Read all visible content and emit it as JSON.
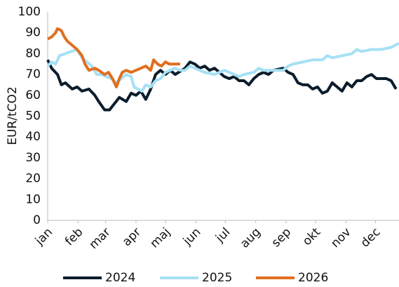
{
  "chart_data": {
    "type": "line",
    "y_label": "EUR/tCO2",
    "xlim": [
      0,
      358
    ],
    "ylim": [
      0,
      100
    ],
    "xticks": [
      {
        "value": 0,
        "label": "jan"
      },
      {
        "value": 31,
        "label": "feb"
      },
      {
        "value": 59,
        "label": "mar"
      },
      {
        "value": 90,
        "label": "apr"
      },
      {
        "value": 120,
        "label": "maj"
      },
      {
        "value": 151,
        "label": "jun"
      },
      {
        "value": 181,
        "label": "jul"
      },
      {
        "value": 212,
        "label": "aug"
      },
      {
        "value": 243,
        "label": "sep"
      },
      {
        "value": 273,
        "label": "okt"
      },
      {
        "value": 304,
        "label": "nov"
      },
      {
        "value": 334,
        "label": "dec"
      }
    ],
    "yticks": [
      0,
      10,
      20,
      30,
      40,
      50,
      60,
      70,
      80,
      90,
      100
    ],
    "grid": false,
    "series": [
      {
        "name": "2024",
        "color": "#0b1c2c",
        "x": [
          0,
          4,
          10,
          14,
          18,
          25,
          30,
          35,
          42,
          48,
          52,
          58,
          63,
          68,
          73,
          80,
          85,
          90,
          95,
          100,
          105,
          110,
          115,
          120,
          125,
          130,
          140,
          145,
          150,
          155,
          160,
          165,
          170,
          175,
          180,
          185,
          190,
          195,
          200,
          205,
          210,
          215,
          220,
          225,
          230,
          240,
          245,
          250,
          255,
          260,
          265,
          270,
          275,
          280,
          285,
          290,
          295,
          300,
          305,
          310,
          315,
          320,
          325,
          330,
          335,
          340,
          345,
          350,
          355
        ],
        "values": [
          77,
          73,
          70,
          65,
          66,
          63,
          64,
          62,
          63,
          60,
          57,
          53,
          53,
          56,
          59,
          57,
          61,
          60,
          62,
          58,
          63,
          70,
          72,
          70,
          72,
          70,
          73,
          76,
          75,
          73,
          74,
          72,
          73,
          71,
          69,
          68,
          69,
          67,
          67,
          65,
          68,
          70,
          71,
          70,
          72,
          73,
          71,
          70,
          66,
          65,
          65,
          63,
          64,
          61,
          62,
          66,
          64,
          62,
          66,
          64,
          67,
          67,
          69,
          70,
          68,
          68,
          68,
          67,
          63
        ]
      },
      {
        "name": "2025",
        "color": "#a6e0f5",
        "x": [
          0,
          4,
          8,
          12,
          18,
          24,
          30,
          35,
          40,
          45,
          50,
          55,
          60,
          65,
          70,
          75,
          80,
          85,
          88,
          92,
          96,
          100,
          105,
          110,
          115,
          120,
          125,
          130,
          135,
          140,
          145,
          150,
          160,
          170,
          180,
          190,
          195,
          200,
          210,
          215,
          220,
          230,
          240,
          245,
          250,
          260,
          270,
          280,
          285,
          290,
          300,
          310,
          315,
          320,
          330,
          340,
          350,
          358
        ],
        "values": [
          74,
          76,
          75,
          79,
          80,
          81,
          82,
          78,
          76,
          74,
          70,
          70,
          69,
          68,
          66,
          68,
          70,
          69,
          64,
          63,
          62,
          65,
          64,
          67,
          68,
          71,
          72,
          73,
          72,
          72,
          74,
          73,
          71,
          70,
          72,
          70,
          69,
          70,
          71,
          73,
          72,
          72,
          72,
          74,
          75,
          76,
          77,
          77,
          79,
          78,
          79,
          80,
          82,
          81,
          82,
          82,
          83,
          85
        ]
      },
      {
        "name": "2026",
        "color": "#e06f1f",
        "x": [
          0,
          4,
          8,
          10,
          14,
          17,
          20,
          25,
          30,
          35,
          38,
          42,
          48,
          52,
          58,
          62,
          66,
          70,
          73,
          76,
          80,
          85,
          90,
          95,
          100,
          105,
          108,
          112,
          116,
          120,
          124,
          128,
          132,
          135
        ],
        "values": [
          87,
          88,
          90,
          92,
          91,
          88,
          86,
          84,
          82,
          79,
          75,
          72,
          73,
          72,
          70,
          71,
          68,
          64,
          68,
          71,
          72,
          71,
          72,
          73,
          74,
          72,
          77,
          75,
          74,
          76,
          75,
          75,
          75,
          75
        ]
      }
    ]
  }
}
